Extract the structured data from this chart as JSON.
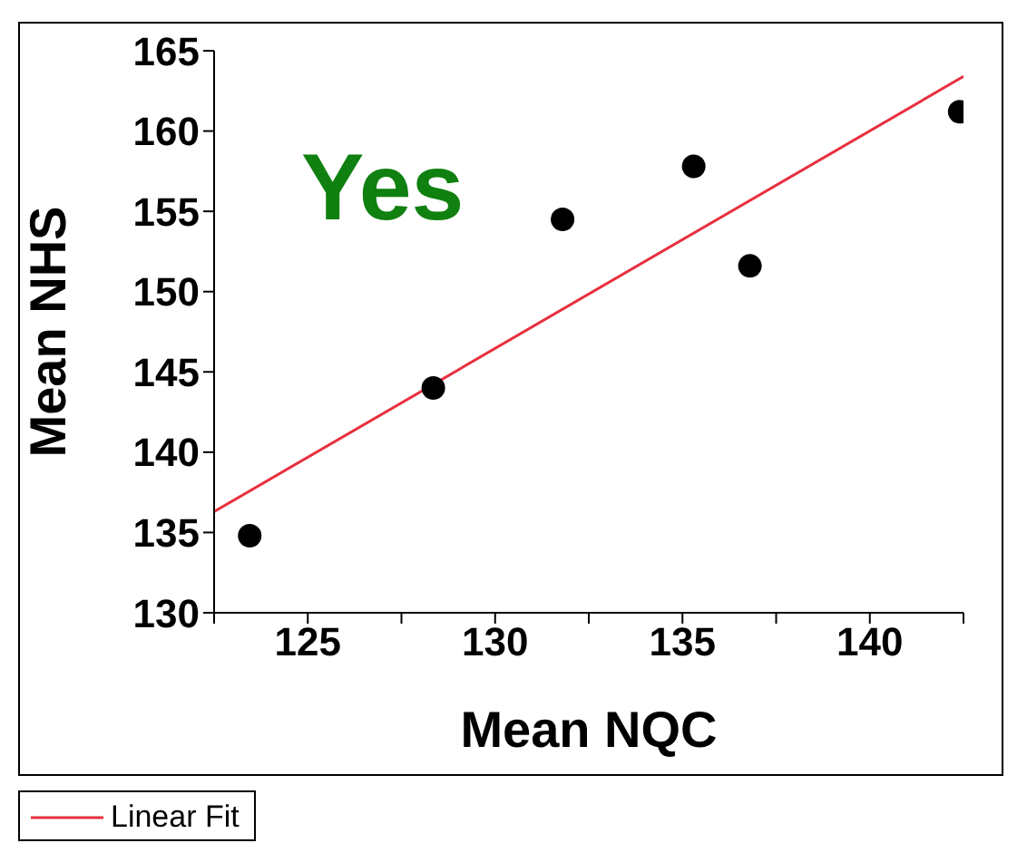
{
  "chart_data": {
    "type": "scatter",
    "xlabel": "Mean NQC",
    "ylabel": "Mean NHS",
    "annotations": [
      "Yes"
    ],
    "series": [
      {
        "color": "#000000",
        "marker": "circle",
        "x": [
          123.45,
          128.35,
          131.8,
          135.3,
          136.8,
          142.4
        ],
        "values": [
          134.8,
          144.0,
          154.5,
          157.8,
          151.6,
          161.2
        ]
      },
      {
        "type": "line",
        "name": "Linear Fit",
        "color": "#e8303f",
        "marker": "none",
        "x": [
          122.5,
          142.5
        ],
        "values": [
          136.3,
          163.4
        ]
      }
    ],
    "xlim": [
      122.5,
      142.5
    ],
    "xticks": [
      {
        "value": 122.5,
        "label": null
      },
      125,
      {
        "value": 127.5,
        "label": null
      },
      130,
      {
        "value": 132.5,
        "label": null
      },
      135,
      {
        "value": 137.5,
        "label": null
      },
      140,
      {
        "value": 142.5,
        "label": null
      }
    ],
    "ylim": [
      130,
      165
    ],
    "yticks": [
      130,
      135,
      140,
      145,
      150,
      155,
      160,
      165
    ],
    "legend": "bottom left",
    "line_style": "solid"
  }
}
